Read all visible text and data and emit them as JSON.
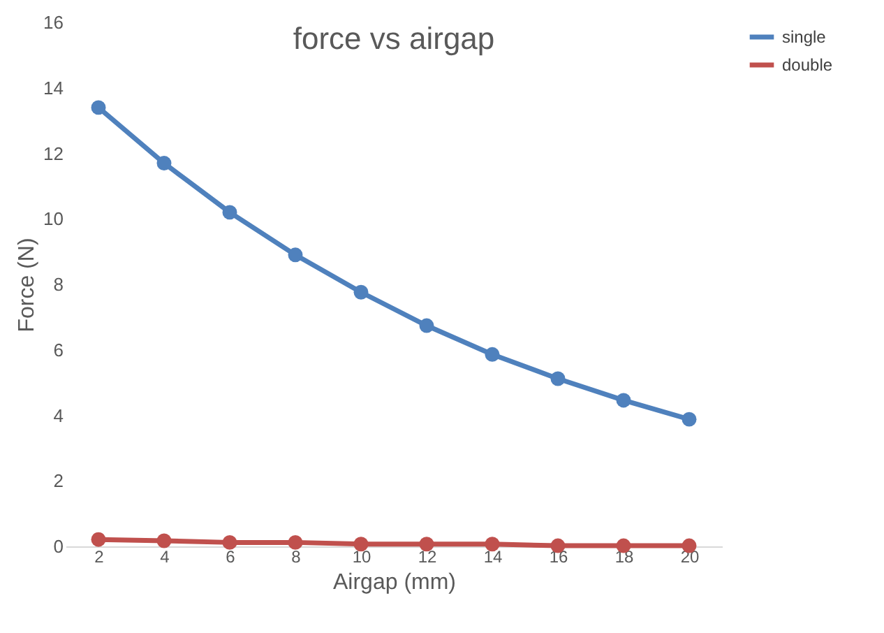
{
  "chart_data": {
    "type": "line",
    "title": "force vs airgap",
    "xlabel": "Airgap (mm)",
    "ylabel": "Force (N)",
    "categories": [
      "2",
      "4",
      "6",
      "8",
      "10",
      "12",
      "14",
      "16",
      "18",
      "20"
    ],
    "series": [
      {
        "name": "single",
        "color": "#4f81bd",
        "values": [
          13.4,
          11.7,
          10.2,
          8.9,
          7.76,
          6.74,
          5.86,
          5.12,
          4.46,
          3.88
        ]
      },
      {
        "name": "double",
        "color": "#c0504d",
        "values": [
          0.21,
          0.17,
          0.12,
          0.12,
          0.07,
          0.07,
          0.07,
          0.02,
          0.02,
          0.02
        ]
      }
    ],
    "ylim": [
      0,
      16
    ],
    "yticks": [
      0,
      2,
      4,
      6,
      8,
      10,
      12,
      14,
      16
    ],
    "grid": false,
    "legend": "right",
    "marker": "circle",
    "line_style": "solid"
  }
}
